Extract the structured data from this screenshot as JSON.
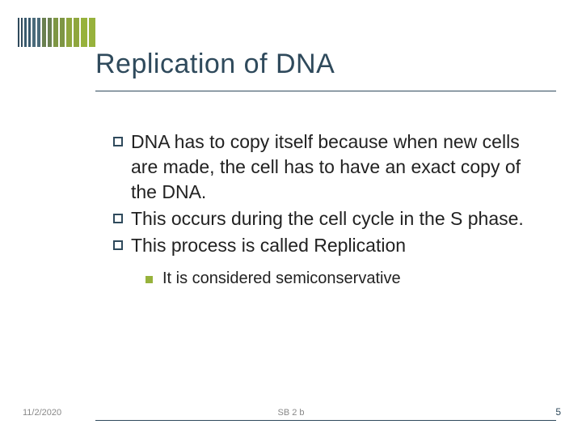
{
  "title": "Replication of DNA",
  "title_color": "#2f4a5c",
  "title_fontsize": 34,
  "top_bars": {
    "count": 14,
    "height": 36,
    "gap": 2,
    "widths": [
      2,
      2,
      3,
      3,
      4,
      4,
      5,
      5,
      6,
      6,
      7,
      7,
      8,
      8
    ],
    "colors": [
      "#2f4a5c",
      "#2f4a5c",
      "#3a5a6e",
      "#3a5a6e",
      "#4a6a7a",
      "#4a6a7a",
      "#6a8050",
      "#6a8050",
      "#7e9644",
      "#7e9644",
      "#8fa63e",
      "#8fa63e",
      "#97b23c",
      "#97b23c"
    ]
  },
  "bullets": [
    "DNA has to copy itself because when new cells are made, the cell has to have an exact copy of the DNA.",
    "This occurs during the cell cycle in the S phase.",
    "This process is called Replication"
  ],
  "bullet_fontsize": 23,
  "bullet_marker_color": "#2f4a5c",
  "sub_bullets": [
    "It is considered semiconservative"
  ],
  "sub_bullet_fontsize": 20,
  "sub_marker_color": "#97b23c",
  "footer": {
    "date": "11/2/2020",
    "center": "SB 2 b",
    "page": "5"
  },
  "hr_color": "#2f4a5c",
  "background_color": "#ffffff"
}
